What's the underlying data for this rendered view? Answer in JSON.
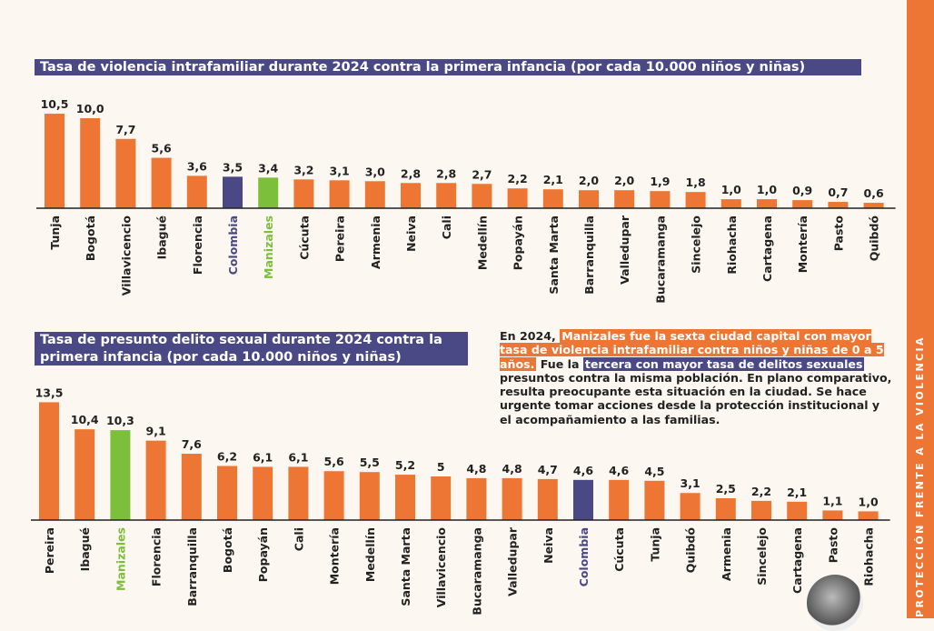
{
  "colors": {
    "default": "#ee7634",
    "colombia": "#4b4886",
    "manizales": "#7cbf3a"
  },
  "chart_data": [
    {
      "type": "bar",
      "title": "Tasa de violencia intrafamiliar durante 2024 contra la primera infancia (por cada 10.000 niños y niñas)",
      "categories": [
        "Tunja",
        "Bogotá",
        "Villavicencio",
        "Ibagué",
        "Florencia",
        "Colombia",
        "Manizales",
        "Cúcuta",
        "Pereira",
        "Armenia",
        "Neiva",
        "Cali",
        "Medellín",
        "Popayán",
        "Santa Marta",
        "Barranquilla",
        "Valledupar",
        "Bucaramanga",
        "Sincelejo",
        "Riohacha",
        "Cartagena",
        "Montería",
        "Pasto",
        "Quibdó"
      ],
      "values": [
        10.5,
        10.0,
        7.7,
        5.6,
        3.6,
        3.5,
        3.4,
        3.2,
        3.1,
        3.0,
        2.8,
        2.8,
        2.7,
        2.2,
        2.1,
        2.0,
        2.0,
        1.9,
        1.8,
        1.0,
        1.0,
        0.9,
        0.7,
        0.6
      ],
      "labels": [
        "10,5",
        "10,0",
        "7,7",
        "5,6",
        "3,6",
        "3,5",
        "3,4",
        "3,2",
        "3,1",
        "3,0",
        "2,8",
        "2,8",
        "2,7",
        "2,2",
        "2,1",
        "2,0",
        "2,0",
        "1,9",
        "1,8",
        "1,0",
        "1,0",
        "0,9",
        "0,7",
        "0,6"
      ]
    },
    {
      "type": "bar",
      "title": "Tasa de presunto delito sexual durante 2024 contra la primera infancia (por cada 10.000 niños y niñas)",
      "categories": [
        "Pereira",
        "Ibagué",
        "Manizales",
        "Florencia",
        "Barranquilla",
        "Bogotá",
        "Popayán",
        "Cali",
        "Montería",
        "Medellín",
        "Santa Marta",
        "Villavicencio",
        "Bucaramanga",
        "Valledupar",
        "Neiva",
        "Colombia",
        "Cúcuta",
        "Tunja",
        "Quibdó",
        "Armenia",
        "Sincelejo",
        "Cartagena",
        "Pasto",
        "Riohacha"
      ],
      "values": [
        13.5,
        10.4,
        10.3,
        9.1,
        7.6,
        6.2,
        6.1,
        6.1,
        5.6,
        5.5,
        5.2,
        5,
        4.8,
        4.8,
        4.7,
        4.6,
        4.6,
        4.5,
        3.1,
        2.5,
        2.2,
        2.1,
        1.1,
        1.0
      ],
      "labels": [
        "13,5",
        "10,4",
        "10,3",
        "9,1",
        "7,6",
        "6,2",
        "6,1",
        "6,1",
        "5,6",
        "5,5",
        "5,2",
        "5",
        "4,8",
        "4,8",
        "4,7",
        "4,6",
        "4,6",
        "4,5",
        "3,1",
        "2,5",
        "2,2",
        "2,1",
        "1,1",
        "1,0"
      ]
    }
  ],
  "paragraph": {
    "p1": "En 2024,",
    "p2": "Manizales fue la sexta ciudad capital con mayor tasa de violencia intrafamiliar contra niños y niñas de 0 a 5 años.",
    "p3": " Fue la ",
    "p4": "tercera con mayor tasa de delitos sexuales",
    "p5": " presuntos contra la misma población. En plano comparativo, resulta preocupante esta situación en la ciudad. Se hace urgente tomar acciones desde la protección institucional y el acompañamiento a las familias."
  },
  "sidebar": {
    "text": "PROTECCIÓN FRENTE A LA VIOLENCIA"
  }
}
